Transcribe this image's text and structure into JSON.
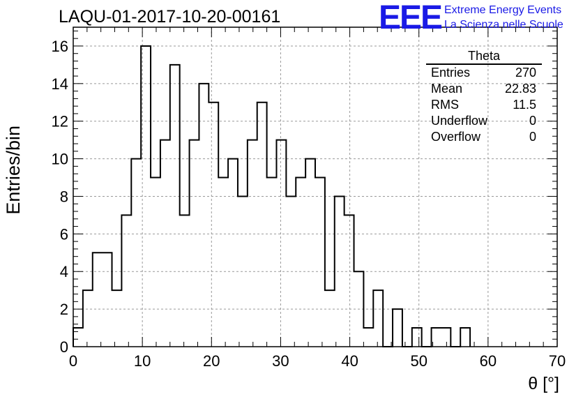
{
  "header": {
    "run_title": "LAQU-01-2017-10-20-00161",
    "logo_mark": "EEE",
    "logo_line1": "Extreme Energy Events",
    "logo_line2": "La Scienza nelle Scuole",
    "logo_color": "#1a1ae6"
  },
  "stats": {
    "title": "Theta",
    "rows": [
      {
        "label": "Entries",
        "value": "270"
      },
      {
        "label": "Mean",
        "value": "22.83"
      },
      {
        "label": "RMS",
        "value": "11.5"
      },
      {
        "label": "Underflow",
        "value": "0"
      },
      {
        "label": "Overflow",
        "value": "0"
      }
    ]
  },
  "chart_data": {
    "type": "histogram",
    "title": "LAQU-01-2017-10-20-00161",
    "xlabel": "θ [°]",
    "ylabel": "Entries/bin",
    "xlim": [
      0,
      70
    ],
    "ylim": [
      0,
      17
    ],
    "bin_width": 1.4,
    "x_ticks": [
      0,
      10,
      20,
      30,
      40,
      50,
      60,
      70
    ],
    "y_ticks": [
      0,
      2,
      4,
      6,
      8,
      10,
      12,
      14,
      16
    ],
    "grid": true,
    "line_color": "#000000",
    "values": [
      1,
      3,
      5,
      5,
      3,
      7,
      10,
      16,
      9,
      11,
      15,
      7,
      11,
      14,
      13,
      9,
      10,
      8,
      11,
      13,
      9,
      11,
      8,
      9,
      10,
      9,
      3,
      8,
      7,
      4,
      1,
      3,
      0,
      2,
      0,
      1,
      0,
      1,
      1,
      0,
      1,
      0,
      0,
      0,
      0,
      0,
      0,
      0,
      0,
      0
    ]
  }
}
